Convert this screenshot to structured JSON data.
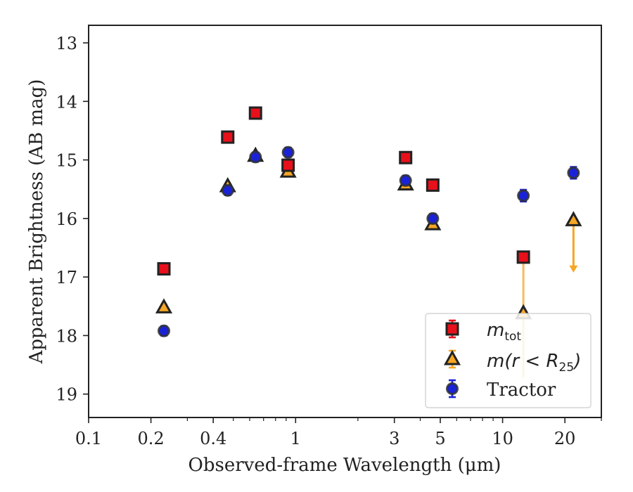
{
  "chart_data": {
    "type": "scatter",
    "xlabel": "Observed-frame Wavelength (μm)",
    "ylabel": "Apparent Brightness (AB mag)",
    "xscale": "log",
    "xlim": [
      0.1,
      30
    ],
    "ylim": [
      19.4,
      12.7
    ],
    "y_inverted": true,
    "xticks": [
      {
        "value": 0.1,
        "label": "0.1"
      },
      {
        "value": 0.2,
        "label": "0.2"
      },
      {
        "value": 0.4,
        "label": "0.4"
      },
      {
        "value": 1,
        "label": "1"
      },
      {
        "value": 3,
        "label": "3"
      },
      {
        "value": 5,
        "label": "5"
      },
      {
        "value": 10,
        "label": "10"
      },
      {
        "value": 20,
        "label": "20"
      }
    ],
    "yticks": [
      {
        "value": 13,
        "label": "13"
      },
      {
        "value": 14,
        "label": "14"
      },
      {
        "value": 15,
        "label": "15"
      },
      {
        "value": 16,
        "label": "16"
      },
      {
        "value": 17,
        "label": "17"
      },
      {
        "value": 18,
        "label": "18"
      },
      {
        "value": 19,
        "label": "19"
      }
    ],
    "legend_position": "lower-right",
    "series": [
      {
        "name": "m_tot",
        "marker": "square",
        "color": "#e8101a",
        "edge_color": "#222222",
        "points": [
          {
            "x": 0.231,
            "y": 16.86,
            "err": 0.05
          },
          {
            "x": 0.47,
            "y": 14.61,
            "err": 0.04
          },
          {
            "x": 0.64,
            "y": 14.2,
            "err": 0.04
          },
          {
            "x": 0.92,
            "y": 15.09,
            "err": 0.05
          },
          {
            "x": 3.4,
            "y": 14.96,
            "err": 0.04
          },
          {
            "x": 4.6,
            "y": 15.43,
            "err": 0.05
          },
          {
            "x": 12.6,
            "y": 16.66,
            "err": 0.08
          }
        ]
      },
      {
        "name": "m(r < R25)",
        "marker": "triangle",
        "color": "#f5a623",
        "edge_color": "#222222",
        "points": [
          {
            "x": 0.231,
            "y": 17.52,
            "err": 0.05
          },
          {
            "x": 0.47,
            "y": 15.45,
            "err": 0.04
          },
          {
            "x": 0.64,
            "y": 14.93,
            "err": 0.04
          },
          {
            "x": 0.92,
            "y": 15.2,
            "err": 0.04
          },
          {
            "x": 3.4,
            "y": 15.42,
            "err": 0.04
          },
          {
            "x": 4.6,
            "y": 16.1,
            "err": 0.05
          },
          {
            "x": 12.6,
            "y": 17.62,
            "err_low": 1.1,
            "err_high": 1.0
          },
          {
            "x": 22.0,
            "y": 16.03,
            "upper_limit": true,
            "limit_to": 16.9
          }
        ]
      },
      {
        "name": "Tractor",
        "marker": "circle",
        "color": "#1a22d8",
        "edge_color": "#333333",
        "points": [
          {
            "x": 0.231,
            "y": 17.92,
            "err": 0.08
          },
          {
            "x": 0.47,
            "y": 15.52,
            "err": 0.08
          },
          {
            "x": 0.64,
            "y": 14.95,
            "err": 0.08
          },
          {
            "x": 0.92,
            "y": 14.87,
            "err": 0.08
          },
          {
            "x": 3.4,
            "y": 15.35,
            "err": 0.08
          },
          {
            "x": 4.6,
            "y": 16.0,
            "err": 0.08
          },
          {
            "x": 12.6,
            "y": 15.61,
            "err": 0.1
          },
          {
            "x": 22.0,
            "y": 15.22,
            "err": 0.1
          }
        ]
      }
    ],
    "legend": [
      {
        "series": "m_tot",
        "label_main": "m",
        "label_sub": "tot"
      },
      {
        "series": "m(r < R25)",
        "label_main": "m(r < R",
        "label_sub": "25",
        "label_tail": ")"
      },
      {
        "series": "Tractor",
        "label_main": "Tractor"
      }
    ]
  }
}
